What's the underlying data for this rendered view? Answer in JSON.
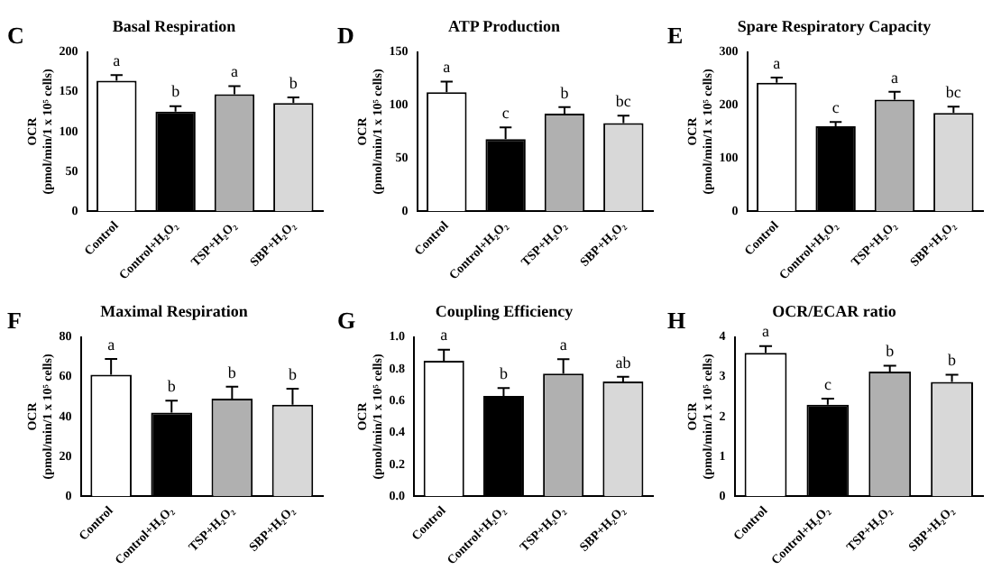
{
  "chart_data": [
    {
      "type": "bar",
      "title": "Basal Respiration",
      "ylabel": "OCR\n(pmol/min/1 x 10⁵ cells)",
      "categories": [
        "Control",
        "Control+H₂O₂",
        "TSP+H₂O₂",
        "SBP+H₂O₂"
      ],
      "values": [
        164,
        125,
        147,
        136
      ],
      "errors": [
        [
          164,
          171
        ],
        [
          125,
          132
        ],
        [
          147,
          157
        ],
        [
          136,
          143
        ]
      ],
      "colors": [
        "#ffffff",
        "#000000",
        "#b0b0b0",
        "#d8d8d8"
      ],
      "ylim": [
        0,
        200
      ],
      "yticks": [
        0,
        50,
        100,
        150,
        200
      ],
      "grid": false,
      "legend": false,
      "annotations": [
        "C",
        {
          "text": "a",
          "x": "Control",
          "y": 171
        },
        {
          "text": "b",
          "x": "Control+H₂O₂",
          "y": 132
        },
        {
          "text": "a",
          "x": "TSP+H₂O₂",
          "y": 157
        },
        {
          "text": "b",
          "x": "SBP+H₂O₂",
          "y": 143
        }
      ]
    },
    {
      "type": "bar",
      "title": "ATP Production",
      "ylabel": "OCR\n(pmol/min/1 x 10⁵ cells)",
      "categories": [
        "Control",
        "Control+H₂O₂",
        "TSP+H₂O₂",
        "SBP+H₂O₂"
      ],
      "values": [
        112,
        68,
        92,
        83
      ],
      "errors": [
        [
          112,
          122
        ],
        [
          68,
          79
        ],
        [
          92,
          98
        ],
        [
          83,
          90
        ]
      ],
      "colors": [
        "#ffffff",
        "#000000",
        "#b0b0b0",
        "#d8d8d8"
      ],
      "ylim": [
        0,
        150
      ],
      "yticks": [
        0,
        50,
        100,
        150
      ],
      "grid": false,
      "legend": false,
      "annotations": [
        "D",
        {
          "text": "a",
          "x": "Control",
          "y": 122
        },
        {
          "text": "c",
          "x": "Control+H₂O₂",
          "y": 79
        },
        {
          "text": "b",
          "x": "TSP+H₂O₂",
          "y": 98
        },
        {
          "text": "bc",
          "x": "SBP+H₂O₂",
          "y": 90
        }
      ]
    },
    {
      "type": "bar",
      "title": "Spare Respiratory Capacity",
      "ylabel": "OCR\n(pmol/min/1 x 10⁵ cells)",
      "categories": [
        "Control",
        "Control+H₂O₂",
        "TSP+H₂O₂",
        "SBP+H₂O₂"
      ],
      "values": [
        242,
        160,
        210,
        185
      ],
      "errors": [
        [
          242,
          252
        ],
        [
          160,
          168
        ],
        [
          210,
          225
        ],
        [
          185,
          197
        ]
      ],
      "colors": [
        "#ffffff",
        "#000000",
        "#b0b0b0",
        "#d8d8d8"
      ],
      "ylim": [
        0,
        300
      ],
      "yticks": [
        0,
        100,
        200,
        300
      ],
      "grid": false,
      "legend": false,
      "annotations": [
        "E",
        {
          "text": "a",
          "x": "Control",
          "y": 252
        },
        {
          "text": "c",
          "x": "Control+H₂O₂",
          "y": 168
        },
        {
          "text": "a",
          "x": "TSP+H₂O₂",
          "y": 225
        },
        {
          "text": "bc",
          "x": "SBP+H₂O₂",
          "y": 197
        }
      ]
    },
    {
      "type": "bar",
      "title": "Maximal Respiration",
      "ylabel": "OCR\n(pmol/min/1 x 10⁵ cells)",
      "categories": [
        "Control",
        "Control+H₂O₂",
        "TSP+H₂O₂",
        "SBP+H₂O₂"
      ],
      "values": [
        61,
        42,
        49,
        46
      ],
      "errors": [
        [
          61,
          69
        ],
        [
          42,
          48
        ],
        [
          49,
          55
        ],
        [
          46,
          54
        ]
      ],
      "colors": [
        "#ffffff",
        "#000000",
        "#b0b0b0",
        "#d8d8d8"
      ],
      "ylim": [
        0,
        80
      ],
      "yticks": [
        0,
        20,
        40,
        60,
        80
      ],
      "grid": false,
      "legend": false,
      "annotations": [
        "F",
        {
          "text": "a",
          "x": "Control",
          "y": 69
        },
        {
          "text": "b",
          "x": "Control+H₂O₂",
          "y": 48
        },
        {
          "text": "b",
          "x": "TSP+H₂O₂",
          "y": 55
        },
        {
          "text": "b",
          "x": "SBP+H₂O₂",
          "y": 54
        }
      ]
    },
    {
      "type": "bar",
      "title": "Coupling Efficiency",
      "ylabel": "OCR\n(pmol/min/1 x 10⁵ cells)",
      "categories": [
        "Control",
        "Control+H₂O₂",
        "TSP+H₂O₂",
        "SBP+H₂O₂"
      ],
      "values": [
        0.85,
        0.63,
        0.77,
        0.72
      ],
      "errors": [
        [
          0.85,
          0.92
        ],
        [
          0.63,
          0.68
        ],
        [
          0.77,
          0.86
        ],
        [
          0.72,
          0.75
        ]
      ],
      "colors": [
        "#ffffff",
        "#000000",
        "#b0b0b0",
        "#d8d8d8"
      ],
      "ylim": [
        0,
        1
      ],
      "yticks": [
        {
          "value": 0,
          "label": "0.0"
        },
        {
          "value": 0.2,
          "label": "0.2"
        },
        {
          "value": 0.4,
          "label": "0.4"
        },
        {
          "value": 0.6,
          "label": "0.6"
        },
        {
          "value": 0.8,
          "label": "0.8"
        },
        {
          "value": 1,
          "label": "1.0"
        }
      ],
      "grid": false,
      "legend": false,
      "annotations": [
        "G",
        {
          "text": "a",
          "x": "Control",
          "y": 0.92
        },
        {
          "text": "b",
          "x": "Control+H₂O₂",
          "y": 0.68
        },
        {
          "text": "a",
          "x": "TSP+H₂O₂",
          "y": 0.86
        },
        {
          "text": "ab",
          "x": "SBP+H₂O₂",
          "y": 0.75
        }
      ]
    },
    {
      "type": "bar",
      "title": "OCR/ECAR ratio",
      "ylabel": "OCR\n(pmol/min/1 x 10⁵ cells)",
      "categories": [
        "Control",
        "Control+H₂O₂",
        "TSP+H₂O₂",
        "SBP+H₂O₂"
      ],
      "values": [
        3.6,
        2.3,
        3.13,
        2.87
      ],
      "errors": [
        [
          3.6,
          3.77
        ],
        [
          2.3,
          2.45
        ],
        [
          3.13,
          3.28
        ],
        [
          2.87,
          3.05
        ]
      ],
      "colors": [
        "#ffffff",
        "#000000",
        "#b0b0b0",
        "#d8d8d8"
      ],
      "ylim": [
        0,
        4
      ],
      "yticks": [
        0,
        1,
        2,
        3,
        4
      ],
      "grid": false,
      "legend": false,
      "annotations": [
        "H",
        {
          "text": "a",
          "x": "Control",
          "y": 3.77
        },
        {
          "text": "c",
          "x": "Control+H₂O₂",
          "y": 2.45
        },
        {
          "text": "b",
          "x": "TSP+H₂O₂",
          "y": 3.28
        },
        {
          "text": "b",
          "x": "SBP+H₂O₂",
          "y": 3.05
        }
      ]
    }
  ]
}
